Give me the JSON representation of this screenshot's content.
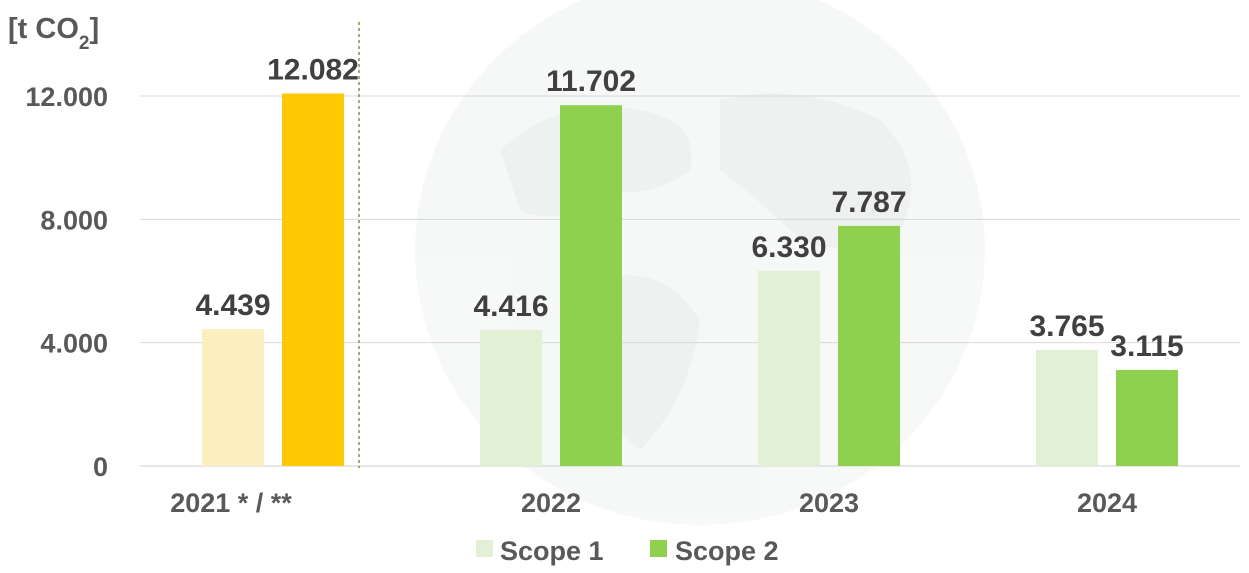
{
  "chart_data": {
    "type": "bar",
    "unit_label": "[t CO",
    "unit_subscript": "2",
    "unit_close": "]",
    "categories": [
      "2021 * / **",
      "2022",
      "2023",
      "2024"
    ],
    "series": [
      {
        "name": "Scope 1",
        "values": [
          4439,
          4416,
          6330,
          3765
        ],
        "labels": [
          "4.439",
          "4.416",
          "6.330",
          "3.765"
        ]
      },
      {
        "name": "Scope 2",
        "values": [
          12082,
          11702,
          7787,
          3115
        ],
        "labels": [
          "12.082",
          "11.702",
          "7.787",
          "3.115"
        ]
      }
    ],
    "yticks": [
      0,
      4000,
      8000,
      12000
    ],
    "ytick_labels": [
      "0",
      "4.000",
      "8.000",
      "12.000"
    ],
    "ylim": [
      0,
      12000
    ],
    "grid": true,
    "legend_position": "bottom-center",
    "colors": {
      "scope1_2021": "#fbefc0",
      "scope2_2021": "#ffca05",
      "scope1": "#e2f0d6",
      "scope2": "#8fd14f",
      "gridline": "#d9d9d9",
      "separator": "#7f8a2a",
      "text": "#595959",
      "value_text": "#404040"
    }
  }
}
